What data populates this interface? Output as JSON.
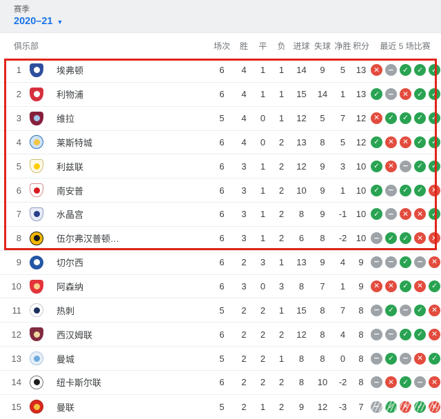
{
  "season_selector": {
    "label": "赛季",
    "value": "2020–21",
    "caret": "▼"
  },
  "table": {
    "club_header": "俱乐部",
    "stat_headers": [
      "场次",
      "胜",
      "平",
      "负",
      "进球",
      "失球",
      "净胜",
      "积分"
    ],
    "last5_header": "最近 5 场比赛",
    "rows": [
      {
        "rank": "1",
        "name": "埃弗顿",
        "played": "6",
        "won": "4",
        "drawn": "1",
        "lost": "1",
        "gf": "14",
        "ga": "9",
        "gd": "5",
        "pts": "13",
        "last5": [
          "L",
          "D",
          "W",
          "W",
          "W"
        ],
        "crest": {
          "shape": "shield",
          "bg": "#2f4e9e",
          "accent": "#ffffff",
          "border": "#2f4e9e"
        }
      },
      {
        "rank": "2",
        "name": "利物浦",
        "played": "6",
        "won": "4",
        "drawn": "1",
        "lost": "1",
        "gf": "15",
        "ga": "14",
        "gd": "1",
        "pts": "13",
        "last5": [
          "W",
          "D",
          "L",
          "W",
          "W"
        ],
        "crest": {
          "shape": "shield",
          "bg": "#d6303e",
          "accent": "#ffffff",
          "border": "#d6303e"
        }
      },
      {
        "rank": "3",
        "name": "维拉",
        "played": "5",
        "won": "4",
        "drawn": "0",
        "lost": "1",
        "gf": "12",
        "ga": "5",
        "gd": "7",
        "pts": "12",
        "last5": [
          "L",
          "W",
          "W",
          "W",
          "W"
        ],
        "crest": {
          "shape": "shield",
          "bg": "#86203c",
          "accent": "#9fc5e8",
          "border": "#86203c"
        }
      },
      {
        "rank": "4",
        "name": "莱斯特城",
        "played": "6",
        "won": "4",
        "drawn": "0",
        "lost": "2",
        "gf": "13",
        "ga": "8",
        "gd": "5",
        "pts": "12",
        "last5": [
          "W",
          "L",
          "L",
          "W",
          "W"
        ],
        "crest": {
          "shape": "circle",
          "bg": "#cfe3f7",
          "accent": "#f4c542",
          "border": "#2a6fb5"
        }
      },
      {
        "rank": "5",
        "name": "利兹联",
        "played": "6",
        "won": "3",
        "drawn": "1",
        "lost": "2",
        "gf": "12",
        "ga": "9",
        "gd": "3",
        "pts": "10",
        "last5": [
          "W",
          "L",
          "D",
          "W",
          "W"
        ],
        "crest": {
          "shape": "shield",
          "bg": "#fdf9e7",
          "accent": "#ffcd00",
          "border": "#cebf6f"
        }
      },
      {
        "rank": "6",
        "name": "南安普",
        "played": "6",
        "won": "3",
        "drawn": "1",
        "lost": "2",
        "gf": "10",
        "ga": "9",
        "gd": "1",
        "pts": "10",
        "last5": [
          "W",
          "D",
          "W",
          "W",
          "L"
        ],
        "crest": {
          "shape": "shield",
          "bg": "#ffffff",
          "accent": "#d71920",
          "border": "#d98b8b"
        }
      },
      {
        "rank": "7",
        "name": "水晶宫",
        "played": "6",
        "won": "3",
        "drawn": "1",
        "lost": "2",
        "gf": "8",
        "ga": "9",
        "gd": "-1",
        "pts": "10",
        "last5": [
          "W",
          "D",
          "L",
          "L",
          "W"
        ],
        "crest": {
          "shape": "shield",
          "bg": "#e8ecf8",
          "accent": "#27408b",
          "border": "#8e9bbd"
        }
      },
      {
        "rank": "8",
        "name": "伍尔弗汉普顿…",
        "played": "6",
        "won": "3",
        "drawn": "1",
        "lost": "2",
        "gf": "6",
        "ga": "8",
        "gd": "-2",
        "pts": "10",
        "last5": [
          "D",
          "W",
          "W",
          "L",
          "L"
        ],
        "crest": {
          "shape": "circle",
          "bg": "#f2b705",
          "accent": "#1a1a1a",
          "border": "#1a1a1a"
        }
      },
      {
        "rank": "9",
        "name": "切尔西",
        "played": "6",
        "won": "2",
        "drawn": "3",
        "lost": "1",
        "gf": "13",
        "ga": "9",
        "gd": "4",
        "pts": "9",
        "last5": [
          "D",
          "D",
          "W",
          "D",
          "L"
        ],
        "crest": {
          "shape": "circle",
          "bg": "#2457a5",
          "accent": "#ffffff",
          "border": "#2457a5"
        }
      },
      {
        "rank": "10",
        "name": "阿森纳",
        "played": "6",
        "won": "3",
        "drawn": "0",
        "lost": "3",
        "gf": "8",
        "ga": "7",
        "gd": "1",
        "pts": "9",
        "last5": [
          "L",
          "L",
          "W",
          "L",
          "W"
        ],
        "crest": {
          "shape": "shield",
          "bg": "#e3333b",
          "accent": "#f7d08a",
          "border": "#e3333b"
        }
      },
      {
        "rank": "11",
        "name": "热刺",
        "played": "5",
        "won": "2",
        "drawn": "2",
        "lost": "1",
        "gf": "15",
        "ga": "8",
        "gd": "7",
        "pts": "8",
        "last5": [
          "D",
          "W",
          "D",
          "W",
          "L"
        ],
        "crest": {
          "shape": "circle",
          "bg": "#ffffff",
          "accent": "#1c2f5e",
          "border": "#c3c9d1"
        }
      },
      {
        "rank": "12",
        "name": "西汉姆联",
        "played": "6",
        "won": "2",
        "drawn": "2",
        "lost": "2",
        "gf": "12",
        "ga": "8",
        "gd": "4",
        "pts": "8",
        "last5": [
          "D",
          "D",
          "W",
          "W",
          "L"
        ],
        "crest": {
          "shape": "shield",
          "bg": "#822c41",
          "accent": "#f0d9a0",
          "border": "#822c41"
        }
      },
      {
        "rank": "13",
        "name": "曼城",
        "played": "5",
        "won": "2",
        "drawn": "2",
        "lost": "1",
        "gf": "8",
        "ga": "8",
        "gd": "0",
        "pts": "8",
        "last5": [
          "D",
          "W",
          "D",
          "L",
          "W"
        ],
        "crest": {
          "shape": "circle",
          "bg": "#e7eff7",
          "accent": "#6cabdd",
          "border": "#a9c4dd"
        }
      },
      {
        "rank": "14",
        "name": "纽卡斯尔联",
        "played": "6",
        "won": "2",
        "drawn": "2",
        "lost": "2",
        "gf": "8",
        "ga": "10",
        "gd": "-2",
        "pts": "8",
        "last5": [
          "D",
          "L",
          "W",
          "D",
          "L"
        ],
        "crest": {
          "shape": "circle",
          "bg": "#ffffff",
          "accent": "#1c1c1c",
          "border": "#6f7579"
        }
      },
      {
        "rank": "15",
        "name": "曼联",
        "played": "5",
        "won": "2",
        "drawn": "1",
        "lost": "2",
        "gf": "9",
        "ga": "12",
        "gd": "-3",
        "pts": "7",
        "last5": [
          "D",
          "W",
          "L",
          "W",
          "L"
        ],
        "crest": {
          "shape": "circle",
          "bg": "#da291c",
          "accent": "#f3c13d",
          "border": "#b01f14"
        }
      }
    ]
  },
  "result_style": {
    "glyphs": {
      "W": "✓",
      "L": "✕",
      "D": "−"
    },
    "colors": {
      "W": "#29a352",
      "L": "#e24c3e",
      "D": "#9ea3a8"
    },
    "names": {
      "W": "win-icon",
      "L": "loss-icon",
      "D": "draw-icon"
    }
  },
  "highlight": {
    "rows_covered": "1-8",
    "color": "#e02417"
  },
  "accent_blue": "#1a73e8"
}
